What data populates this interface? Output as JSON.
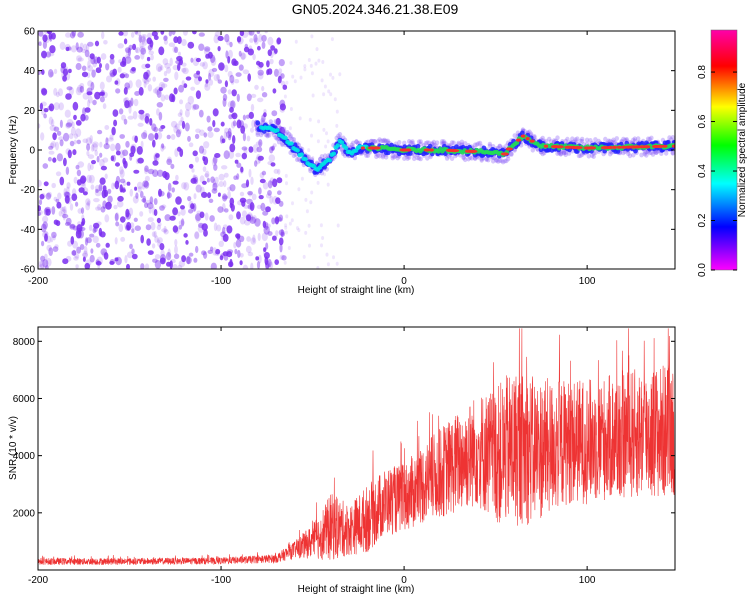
{
  "title": "GN05.2024.346.21.38.E09",
  "colors": {
    "snr_line": "#ee3333",
    "scatter_noise": "#7a2ef0",
    "colorbar": [
      "#ff00ff",
      "#0000ff",
      "#00ffff",
      "#00ff00",
      "#ffff00",
      "#ff0000",
      "#ff00aa"
    ]
  },
  "chart_data": [
    {
      "type": "heatmap",
      "xlabel": "Height of straight line (km)",
      "ylabel": "Frequency (Hz)",
      "xlim": [
        -200,
        148
      ],
      "ylim": [
        -60,
        60
      ],
      "x_ticks": [
        -200,
        -100,
        0,
        100
      ],
      "y_ticks": [
        60,
        40,
        20,
        0,
        -20,
        -40,
        -60
      ],
      "colorbar": {
        "label": "Normalized spectral amplitude",
        "range": [
          0.0,
          0.97
        ],
        "ticks": [
          "0.0",
          "0.2",
          "0.4",
          "0.6",
          "0.8"
        ]
      },
      "noise_region_x": [
        -200,
        -65
      ],
      "signal_band": [
        {
          "x": -80,
          "y": 12
        },
        {
          "x": -70,
          "y": 10
        },
        {
          "x": -62,
          "y": 3
        },
        {
          "x": -55,
          "y": -4
        },
        {
          "x": -48,
          "y": -10
        },
        {
          "x": -40,
          "y": -4
        },
        {
          "x": -35,
          "y": 5
        },
        {
          "x": -30,
          "y": -2
        },
        {
          "x": -25,
          "y": 1
        },
        {
          "x": -15,
          "y": 1
        },
        {
          "x": 0,
          "y": 0
        },
        {
          "x": 20,
          "y": 0
        },
        {
          "x": 45,
          "y": -1
        },
        {
          "x": 55,
          "y": -2
        },
        {
          "x": 60,
          "y": 3
        },
        {
          "x": 65,
          "y": 7
        },
        {
          "x": 75,
          "y": 2
        },
        {
          "x": 100,
          "y": 1
        },
        {
          "x": 148,
          "y": 2
        }
      ]
    },
    {
      "type": "line",
      "xlabel": "Height of straight line (km)",
      "ylabel": "SNR (10 * v/v)",
      "xlim": [
        -200,
        148
      ],
      "ylim": [
        0,
        8500
      ],
      "x_ticks": [
        -200,
        -100,
        0,
        100
      ],
      "y_ticks": [
        2000,
        4000,
        6000,
        8000
      ],
      "series": [
        {
          "envelope": [
            {
              "x": -200,
              "mean": 300,
              "spread": 120
            },
            {
              "x": -150,
              "mean": 300,
              "spread": 120
            },
            {
              "x": -100,
              "mean": 320,
              "spread": 120
            },
            {
              "x": -70,
              "mean": 400,
              "spread": 150
            },
            {
              "x": -60,
              "mean": 700,
              "spread": 300
            },
            {
              "x": -50,
              "mean": 1000,
              "spread": 600
            },
            {
              "x": -40,
              "mean": 1500,
              "spread": 1200
            },
            {
              "x": -30,
              "mean": 1400,
              "spread": 900
            },
            {
              "x": -20,
              "mean": 1800,
              "spread": 1200
            },
            {
              "x": -10,
              "mean": 2400,
              "spread": 1200
            },
            {
              "x": 0,
              "mean": 2500,
              "spread": 1200
            },
            {
              "x": 10,
              "mean": 3000,
              "spread": 1400
            },
            {
              "x": 20,
              "mean": 3400,
              "spread": 1600
            },
            {
              "x": 30,
              "mean": 3800,
              "spread": 1800
            },
            {
              "x": 40,
              "mean": 4200,
              "spread": 2000
            },
            {
              "x": 50,
              "mean": 4000,
              "spread": 2400
            },
            {
              "x": 60,
              "mean": 4300,
              "spread": 2800
            },
            {
              "x": 70,
              "mean": 4200,
              "spread": 2600
            },
            {
              "x": 80,
              "mean": 4300,
              "spread": 2400
            },
            {
              "x": 90,
              "mean": 4500,
              "spread": 2200
            },
            {
              "x": 100,
              "mean": 4500,
              "spread": 2200
            },
            {
              "x": 110,
              "mean": 4600,
              "spread": 2200
            },
            {
              "x": 120,
              "mean": 4700,
              "spread": 2300
            },
            {
              "x": 130,
              "mean": 4800,
              "spread": 2300
            },
            {
              "x": 140,
              "mean": 4800,
              "spread": 2400
            },
            {
              "x": 148,
              "mean": 5000,
              "spread": 2400
            }
          ]
        }
      ]
    }
  ]
}
